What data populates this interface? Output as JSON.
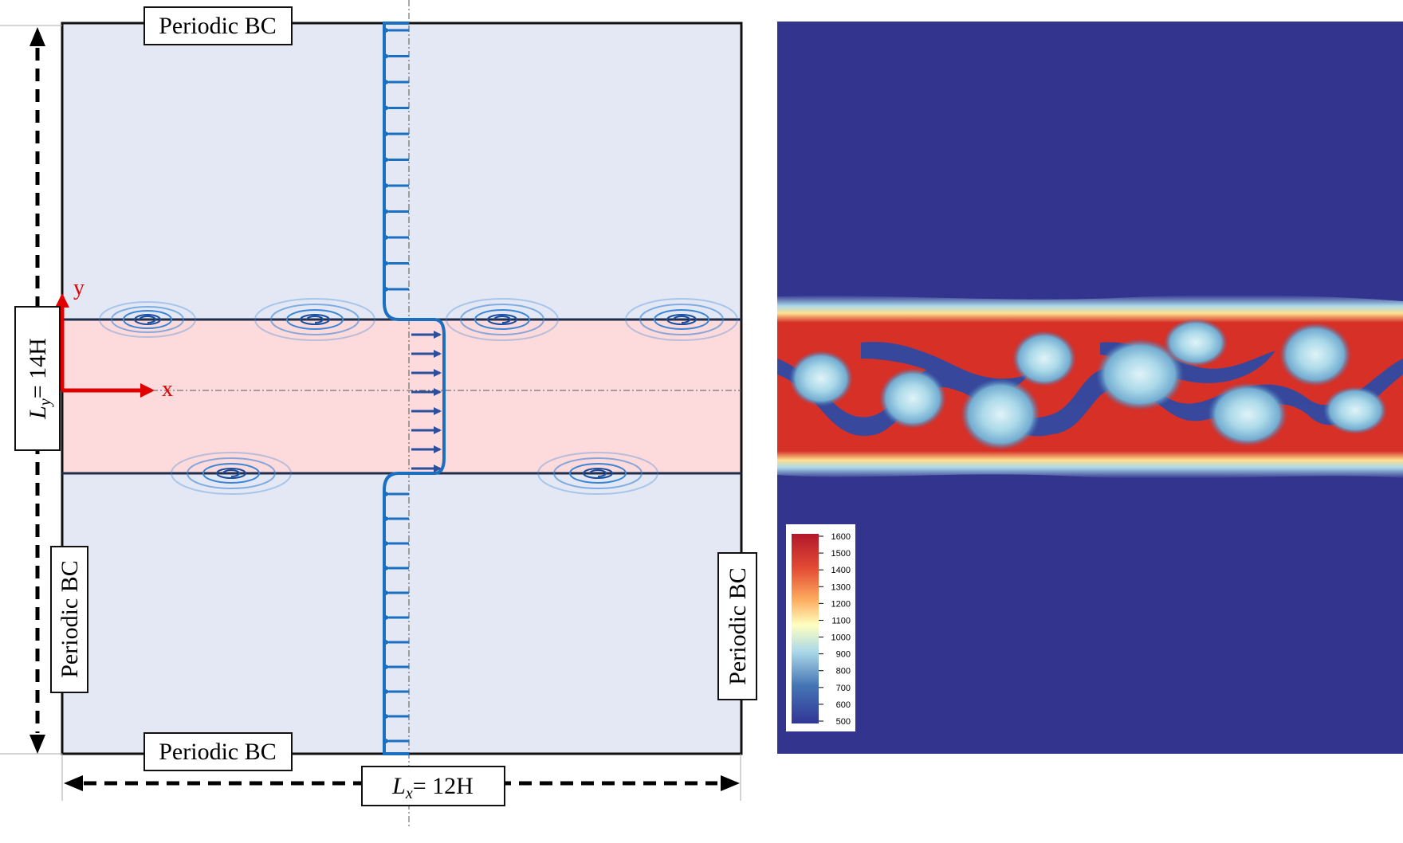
{
  "left_diagram": {
    "top_bc_label": "Periodic BC",
    "bottom_bc_label": "Periodic BC",
    "left_bc_label": "Periodic BC",
    "right_bc_label": "Periodic BC",
    "ly_label": "L_y = 14H",
    "ly_var": "L",
    "ly_sub": "y",
    "ly_rest": "= 14H",
    "lx_var": "L",
    "lx_sub": "x",
    "lx_rest": "= 12H",
    "axis_x_label": "x",
    "axis_y_label": "y",
    "colors": {
      "outer_region": "#e3e8f4",
      "jet_region": "#fddadb",
      "profile_blue": "#1a6fc0",
      "axis_red": "#e00000"
    },
    "icons": [
      "vortex-icon",
      "velocity-arrow-icon"
    ]
  },
  "right_field": {
    "colormap": "rainbow",
    "background_color": "#32348e",
    "colorbar": {
      "ticks": [
        "1600",
        "1500",
        "1400",
        "1300",
        "1200",
        "1100",
        "1000",
        "900",
        "800",
        "700",
        "600",
        "500"
      ],
      "min": 500,
      "max": 1600
    }
  }
}
